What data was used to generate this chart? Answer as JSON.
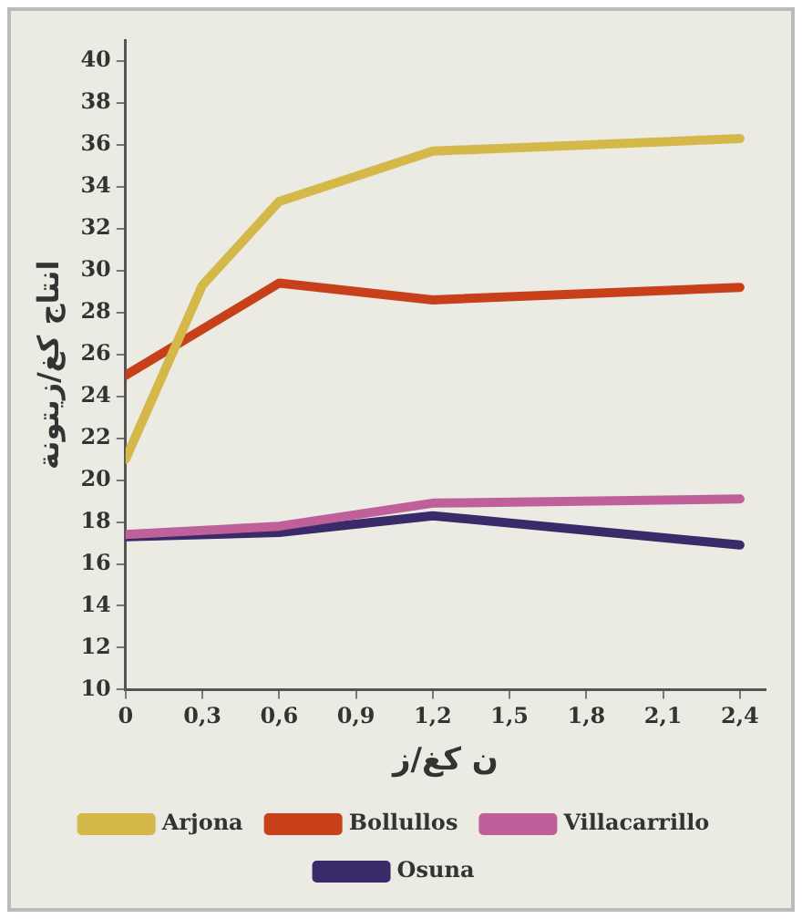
{
  "chart_data": {
    "type": "line",
    "xlabel": "ن كغ/ز",
    "ylabel": "انتاج كغ/زيتونة",
    "xlim": [
      0,
      2.5
    ],
    "ylim": [
      10,
      41
    ],
    "xticks": [
      0,
      {
        "value": 0.3,
        "label": "0,3"
      },
      {
        "value": 0.6,
        "label": "0,6"
      },
      {
        "value": 0.9,
        "label": "0,9"
      },
      {
        "value": 1.2,
        "label": "1,2"
      },
      {
        "value": 1.5,
        "label": "1,5"
      },
      {
        "value": 1.8,
        "label": "1,8"
      },
      {
        "value": 2.1,
        "label": "2,1"
      },
      {
        "value": 2.4,
        "label": "2,4"
      }
    ],
    "yticks": [
      10,
      12,
      14,
      16,
      18,
      20,
      22,
      24,
      26,
      28,
      30,
      32,
      34,
      36,
      38,
      40
    ],
    "grid": false,
    "legend": "bottom",
    "marker": "none",
    "line_style": "solid",
    "series": [
      {
        "name": "Arjona",
        "color": "#d4b84a",
        "x": [
          0,
          0.3,
          0.6,
          1.2,
          2.4
        ],
        "values": [
          21,
          29.3,
          33.3,
          35.7,
          36.3
        ]
      },
      {
        "name": "Bollullos",
        "color": "#c8401a",
        "x": [
          0,
          0.6,
          1.2,
          2.4
        ],
        "values": [
          25,
          29.4,
          28.6,
          29.2
        ]
      },
      {
        "name": "Villacarrillo",
        "color": "#c0609a",
        "x": [
          0,
          0.6,
          1.2,
          2.4
        ],
        "values": [
          17.4,
          17.8,
          18.9,
          19.1
        ]
      },
      {
        "name": "Osuna",
        "color": "#3a2a6a",
        "x": [
          0,
          0.6,
          1.2,
          2.4
        ],
        "values": [
          17.3,
          17.5,
          18.3,
          16.9
        ]
      }
    ]
  }
}
